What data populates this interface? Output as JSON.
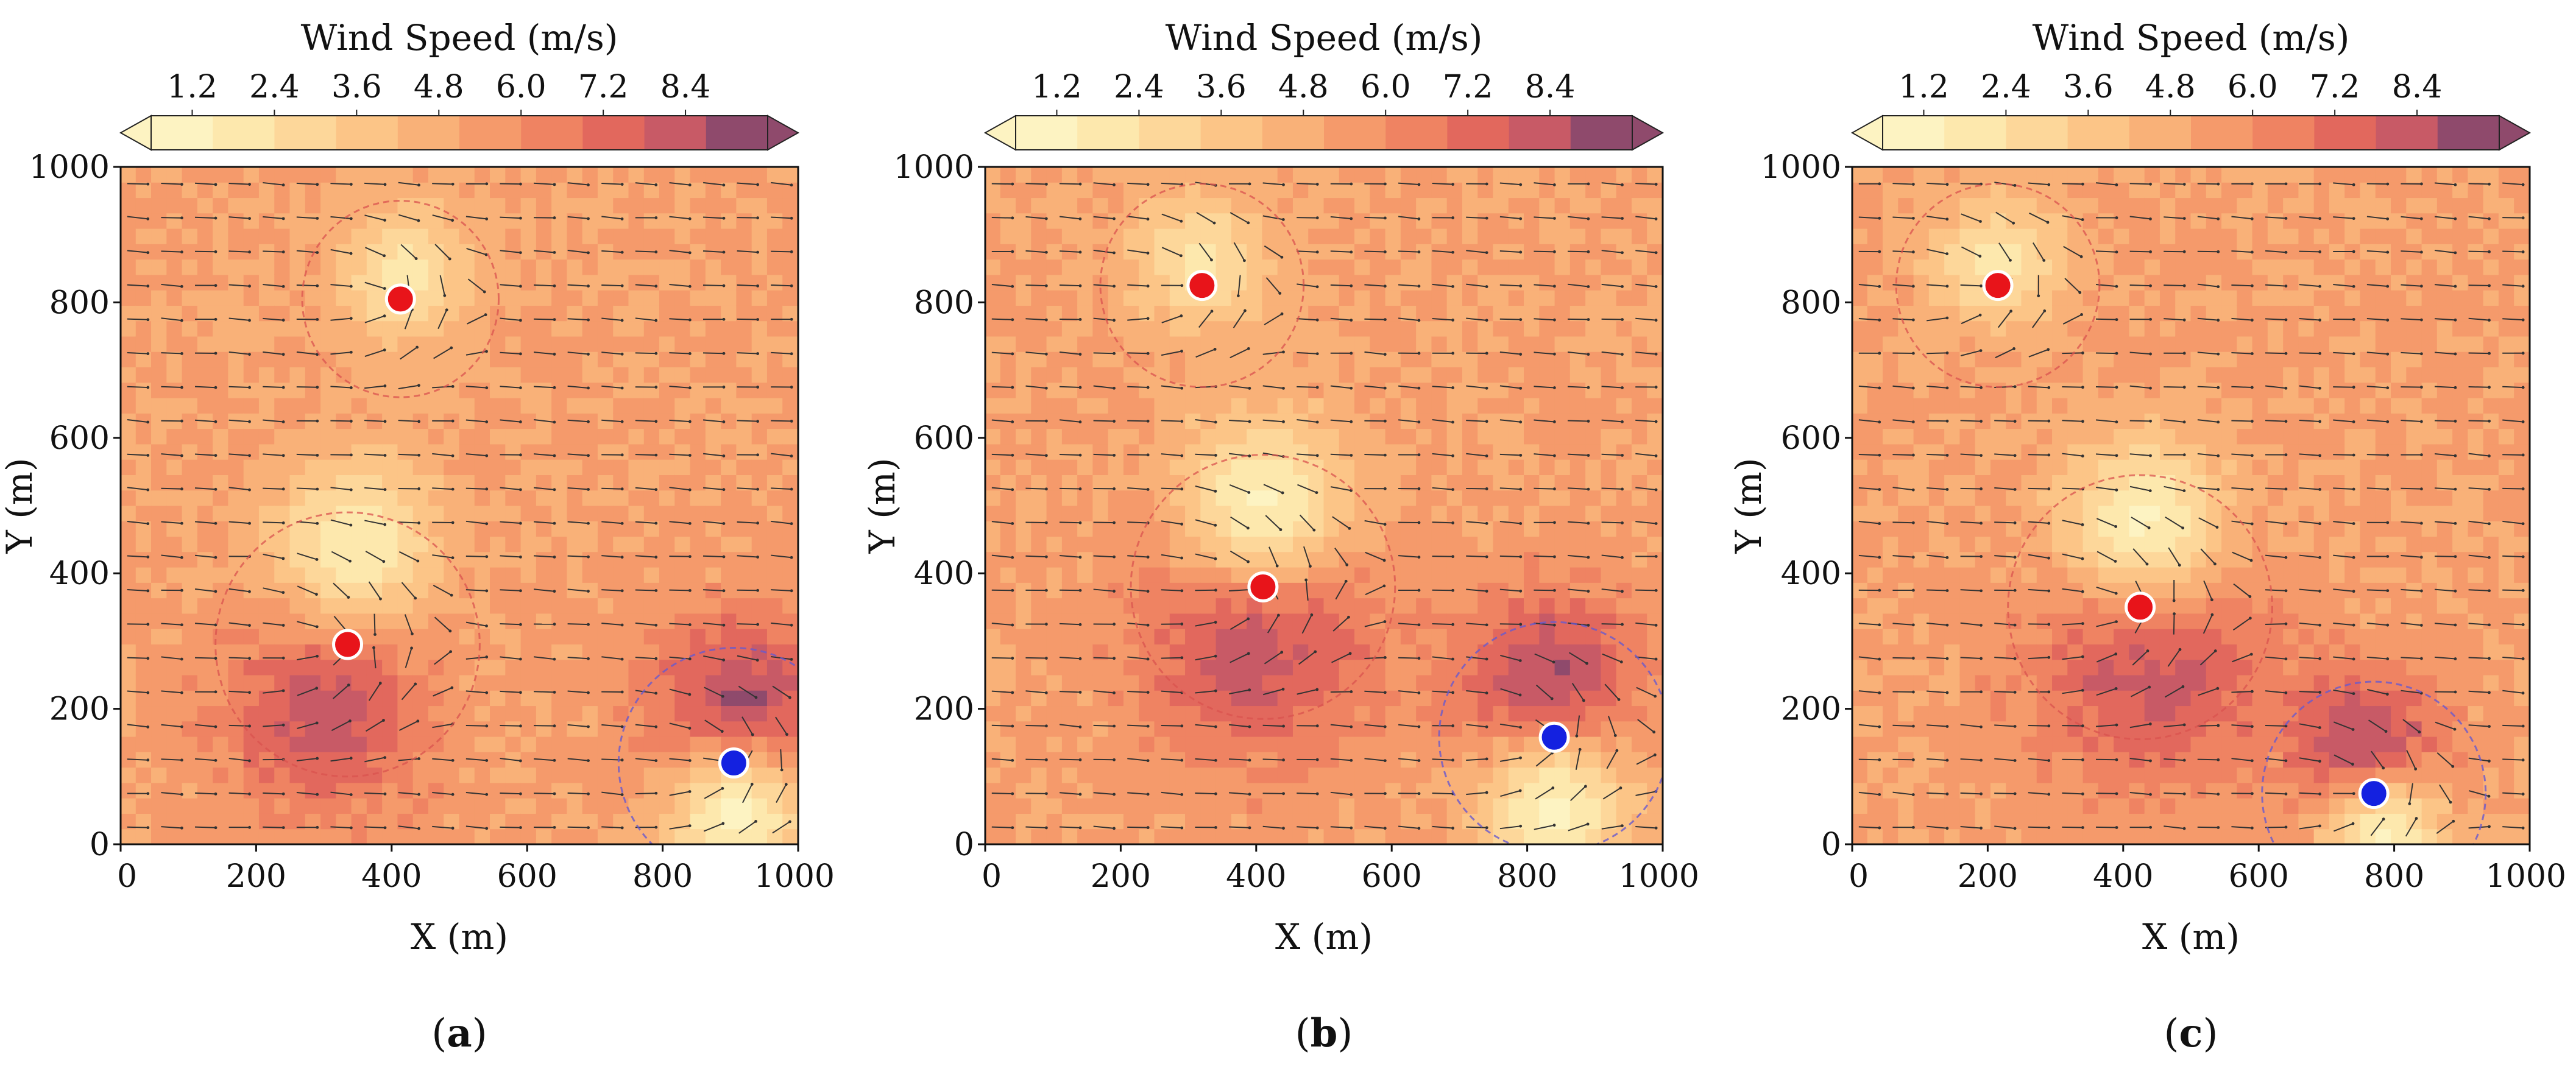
{
  "colorbar": {
    "title": "Wind Speed (m/s)",
    "ticks": [
      1.2,
      2.4,
      3.6,
      4.8,
      6.0,
      7.2,
      8.4
    ],
    "tick_labels": [
      "1.2",
      "2.4",
      "3.6",
      "4.8",
      "6.0",
      "7.2",
      "8.4"
    ],
    "range": [
      0.6,
      9.6
    ],
    "extend": "both",
    "colors": [
      "#fdf3c2",
      "#fde8ad",
      "#fdd79a",
      "#fcc587",
      "#f9b178",
      "#f59a6b",
      "#ef8362",
      "#e2685d",
      "#c85a66",
      "#8f4a6c"
    ]
  },
  "chart_data": [
    {
      "type": "heatmap",
      "panel_label": "(a)",
      "panel_letter": "a",
      "xlabel": "X (m)",
      "ylabel": "Y (m)",
      "xlim": [
        0,
        1000
      ],
      "ylim": [
        0,
        1000
      ],
      "xticks": [
        0,
        200,
        400,
        600,
        800,
        1000
      ],
      "yticks": [
        0,
        200,
        400,
        600,
        800,
        1000
      ],
      "background_speed": 5.2,
      "red_points": [
        {
          "x": 413,
          "y": 805,
          "radius": 145
        },
        {
          "x": 335,
          "y": 295,
          "radius": 195
        }
      ],
      "blue_point": {
        "x": 905,
        "y": 120,
        "radius": 170
      },
      "calm_regions": [
        {
          "x": 420,
          "y": 840,
          "r": 110,
          "speed": 2.0
        },
        {
          "x": 345,
          "y": 445,
          "r": 135,
          "speed": 1.6
        },
        {
          "x": 910,
          "y": 40,
          "r": 115,
          "speed": 1.2
        }
      ],
      "strong_regions": [
        {
          "x": 300,
          "y": 200,
          "r": 150,
          "speed": 8.4
        },
        {
          "x": 915,
          "y": 200,
          "r": 135,
          "speed": 9.0
        }
      ]
    },
    {
      "type": "heatmap",
      "panel_label": "(b)",
      "panel_letter": "b",
      "xlabel": "X (m)",
      "ylabel": "Y (m)",
      "xlim": [
        0,
        1000
      ],
      "ylim": [
        0,
        1000
      ],
      "xticks": [
        0,
        200,
        400,
        600,
        800,
        1000
      ],
      "yticks": [
        0,
        200,
        400,
        600,
        800,
        1000
      ],
      "background_speed": 5.2,
      "red_points": [
        {
          "x": 320,
          "y": 825,
          "radius": 150
        },
        {
          "x": 410,
          "y": 380,
          "radius": 195
        }
      ],
      "blue_point": {
        "x": 840,
        "y": 158,
        "radius": 170
      },
      "calm_regions": [
        {
          "x": 320,
          "y": 860,
          "r": 110,
          "speed": 2.0
        },
        {
          "x": 410,
          "y": 510,
          "r": 140,
          "speed": 1.4
        },
        {
          "x": 840,
          "y": 50,
          "r": 125,
          "speed": 1.2
        }
      ],
      "strong_regions": [
        {
          "x": 400,
          "y": 300,
          "r": 180,
          "speed": 8.4
        },
        {
          "x": 830,
          "y": 240,
          "r": 130,
          "speed": 9.0
        }
      ]
    },
    {
      "type": "heatmap",
      "panel_label": "(c)",
      "panel_letter": "c",
      "xlabel": "X (m)",
      "ylabel": "Y (m)",
      "xlim": [
        0,
        1000
      ],
      "ylim": [
        0,
        1000
      ],
      "xticks": [
        0,
        200,
        400,
        600,
        800,
        1000
      ],
      "yticks": [
        0,
        200,
        400,
        600,
        800,
        1000
      ],
      "background_speed": 5.2,
      "red_points": [
        {
          "x": 215,
          "y": 825,
          "radius": 150
        },
        {
          "x": 425,
          "y": 350,
          "radius": 195
        }
      ],
      "blue_point": {
        "x": 770,
        "y": 75,
        "radius": 165
      },
      "calm_regions": [
        {
          "x": 215,
          "y": 860,
          "r": 105,
          "speed": 2.0
        },
        {
          "x": 430,
          "y": 480,
          "r": 140,
          "speed": 1.4
        },
        {
          "x": 790,
          "y": 10,
          "r": 100,
          "speed": 1.4
        }
      ],
      "strong_regions": [
        {
          "x": 440,
          "y": 270,
          "r": 180,
          "speed": 8.3
        },
        {
          "x": 760,
          "y": 150,
          "r": 110,
          "speed": 9.0
        }
      ]
    }
  ]
}
